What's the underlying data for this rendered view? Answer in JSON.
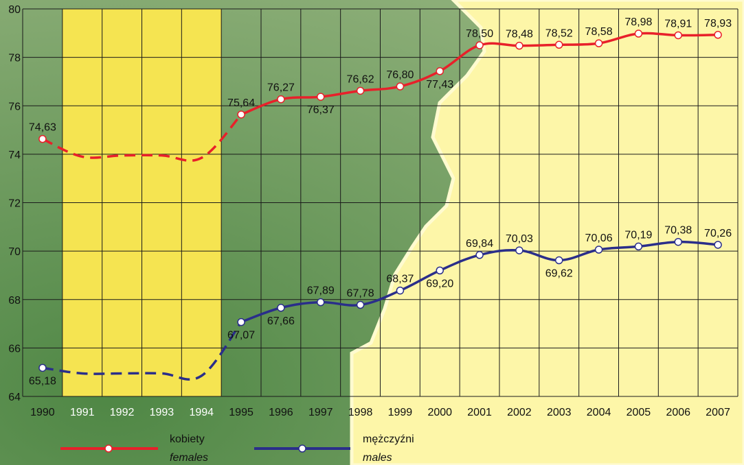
{
  "chart_data": {
    "type": "line",
    "title": "",
    "xlabel": "",
    "ylabel": "",
    "ylim": [
      64,
      80
    ],
    "yticks": [
      "64",
      "66",
      "68",
      "70",
      "72",
      "74",
      "76",
      "78",
      "80"
    ],
    "x": [
      "1990",
      "1991",
      "1992",
      "1993",
      "1994",
      "1995",
      "1996",
      "1997",
      "1998",
      "1999",
      "2000",
      "2001",
      "2002",
      "2003",
      "2004",
      "2005",
      "2006",
      "2007"
    ],
    "highlight_years": [
      "1991",
      "1992",
      "1993",
      "1994"
    ],
    "grid": true,
    "series": [
      {
        "name": "kobiety",
        "name_en": "females",
        "color": "#e8202a",
        "values": [
          74.63,
          73.9,
          73.95,
          73.95,
          73.85,
          75.64,
          76.27,
          76.37,
          76.62,
          76.8,
          77.43,
          78.5,
          78.48,
          78.52,
          78.58,
          78.98,
          78.91,
          78.93
        ],
        "labels": [
          "74,63",
          null,
          null,
          null,
          null,
          "75,64",
          "76,27",
          "76,37",
          "76,62",
          "76,80",
          "77,43",
          "78,50",
          "78,48",
          "78,52",
          "78,58",
          "78,98",
          "78,91",
          "78,93"
        ],
        "label_pos": [
          "above",
          null,
          null,
          null,
          null,
          "above",
          "above",
          "below",
          "above",
          "above",
          "below",
          "above",
          "above",
          "above",
          "above",
          "above",
          "above",
          "above"
        ],
        "dashed_years": [
          "1991",
          "1992",
          "1993",
          "1994"
        ]
      },
      {
        "name": "mężczyźni",
        "name_en": "males",
        "color": "#2a2e8a",
        "values": [
          65.18,
          64.95,
          64.95,
          64.95,
          64.85,
          67.07,
          67.66,
          67.89,
          67.78,
          68.37,
          69.2,
          69.84,
          70.03,
          69.62,
          70.06,
          70.19,
          70.38,
          70.26
        ],
        "labels": [
          "65,18",
          null,
          null,
          null,
          null,
          "67,07",
          "67,66",
          "67,89",
          "67,78",
          "68,37",
          "69,20",
          "69,84",
          "70,03",
          "69,62",
          "70,06",
          "70,19",
          "70,38",
          "70,26"
        ],
        "label_pos": [
          "below",
          null,
          null,
          null,
          null,
          "below",
          "below",
          "above",
          "above",
          "above",
          "below",
          "above",
          "above",
          "below",
          "above",
          "above",
          "above",
          "above"
        ],
        "dashed_years": [
          "1991",
          "1992",
          "1993",
          "1994"
        ]
      }
    ],
    "legend": [
      {
        "label": "kobiety",
        "sublabel": "females",
        "color": "#e8202a"
      },
      {
        "label": "mężczyźni",
        "sublabel": "males",
        "color": "#2a2e8a"
      }
    ],
    "legend_placement": "bottom"
  },
  "colors": {
    "background_green": "#6b9a5e",
    "highlight_yellow": "#f5e451",
    "light_yellow": "#fdf6a8",
    "grid_line": "#1a1a1a"
  }
}
